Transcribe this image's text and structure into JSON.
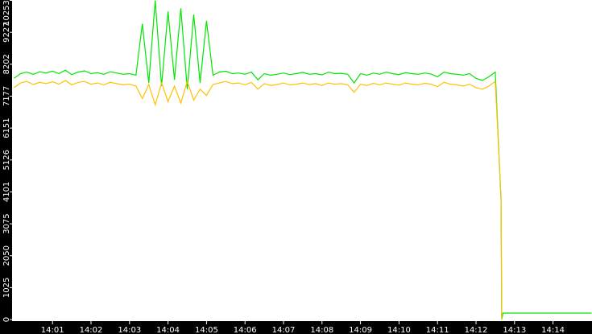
{
  "chart_data": {
    "type": "line",
    "title": "",
    "xlabel": "",
    "ylabel": "",
    "ylim": [
      0,
      10253
    ],
    "xlim": [
      "14:00:00",
      "14:15:00"
    ],
    "grid": false,
    "legend": "none",
    "y_ticks": [
      "0",
      "1025",
      "2050",
      "3075",
      "4101",
      "5126",
      "6151",
      "7177",
      "8202",
      "9227",
      "10253"
    ],
    "x_ticks": [
      "14:01",
      "14:02",
      "14:03",
      "14:04",
      "14:05",
      "14:06",
      "14:07",
      "14:08",
      "14:09",
      "14:10",
      "14:11",
      "14:12",
      "14:13",
      "14:14"
    ],
    "series": [
      {
        "color": "#00e600",
        "start": "14:00:00",
        "interval_s": 10,
        "values": [
          7750,
          7900,
          7950,
          7880,
          7960,
          7920,
          7980,
          7900,
          8010,
          7870,
          7950,
          7990,
          7900,
          7930,
          7880,
          7960,
          7920,
          7880,
          7900,
          7850,
          9500,
          7600,
          10253,
          7500,
          9900,
          7700,
          10000,
          7400,
          9800,
          7600,
          9600,
          7850,
          7950,
          7980,
          7900,
          7920,
          7880,
          7950,
          7700,
          7900,
          7850,
          7880,
          7920,
          7870,
          7900,
          7940,
          7880,
          7900,
          7860,
          7950,
          7900,
          7910,
          7880,
          7600,
          7900,
          7850,
          7920,
          7880,
          7950,
          7900,
          7870,
          7930,
          7900,
          7880,
          7920,
          7890,
          7800,
          7950,
          7900,
          7880,
          7850,
          7900,
          7750,
          7680,
          7800,
          7950
        ],
        "tail": [
          [
            "14:12:39",
            3800
          ],
          [
            "14:12:40",
            0
          ],
          [
            "14:12:42",
            207
          ],
          [
            "14:15:00",
            207
          ]
        ]
      },
      {
        "color": "#ffc000",
        "start": "14:00:00",
        "interval_s": 10,
        "values": [
          7450,
          7600,
          7650,
          7550,
          7620,
          7580,
          7640,
          7560,
          7680,
          7540,
          7620,
          7650,
          7560,
          7600,
          7540,
          7620,
          7580,
          7540,
          7560,
          7500,
          7100,
          7550,
          6900,
          7600,
          7000,
          7500,
          6950,
          7650,
          7050,
          7400,
          7200,
          7550,
          7600,
          7650,
          7580,
          7600,
          7540,
          7620,
          7400,
          7580,
          7520,
          7550,
          7600,
          7540,
          7560,
          7600,
          7550,
          7580,
          7520,
          7600,
          7560,
          7580,
          7540,
          7300,
          7560,
          7520,
          7590,
          7540,
          7600,
          7560,
          7530,
          7600,
          7560,
          7540,
          7590,
          7560,
          7480,
          7620,
          7560,
          7540,
          7500,
          7560,
          7450,
          7400,
          7500,
          7650
        ],
        "tail": [
          [
            "14:12:39",
            3900
          ],
          [
            "14:12:40",
            0
          ]
        ]
      }
    ]
  }
}
